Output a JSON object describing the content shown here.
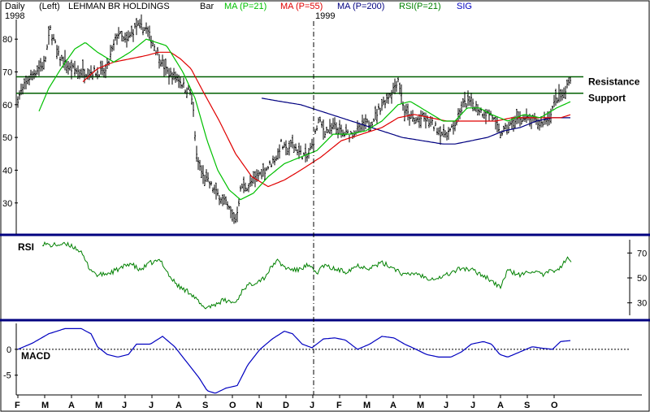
{
  "header": {
    "period": "Daily",
    "axis_side": "(Left)",
    "symbol": "LEHMAN BR HOLDINGS",
    "style": "Bar",
    "legend": [
      {
        "label": "MA (P=21)",
        "color": "#00c000"
      },
      {
        "label": "MA (P=55)",
        "color": "#e00000"
      },
      {
        "label": "MA (P=200)",
        "color": "#000080"
      },
      {
        "label": "RSI(P=21)",
        "color": "#008000"
      },
      {
        "label": "SIG",
        "color": "#0000c0"
      }
    ],
    "year_start": "1998",
    "year_mid": "1999"
  },
  "chart_data": [
    {
      "type": "bar",
      "panel": "price",
      "ylim": [
        22,
        86
      ],
      "y_ticks": [
        "80",
        "70",
        "60",
        "50",
        "40",
        "30"
      ],
      "x_months": [
        "F",
        "M",
        "A",
        "M",
        "J",
        "J",
        "A",
        "S",
        "O",
        "N",
        "D",
        "J",
        "F",
        "M",
        "A",
        "M",
        "J",
        "J",
        "A",
        "S",
        "O"
      ],
      "levels": [
        {
          "name": "Resistance",
          "value": 68.5
        },
        {
          "name": "Support",
          "value": 63.5
        }
      ],
      "close_anchors": [
        [
          0,
          53
        ],
        [
          7,
          56
        ],
        [
          20,
          61
        ],
        [
          35,
          68
        ],
        [
          55,
          73
        ],
        [
          62,
          83
        ],
        [
          72,
          75
        ],
        [
          85,
          71
        ],
        [
          100,
          70
        ],
        [
          112,
          70
        ],
        [
          130,
          70
        ],
        [
          145,
          82
        ],
        [
          155,
          79
        ],
        [
          168,
          84
        ],
        [
          180,
          83
        ],
        [
          192,
          77
        ],
        [
          205,
          70
        ],
        [
          220,
          68
        ],
        [
          228,
          65
        ],
        [
          234,
          64
        ],
        [
          238,
          58
        ],
        [
          242,
          44
        ],
        [
          250,
          38
        ],
        [
          258,
          36
        ],
        [
          266,
          33
        ],
        [
          275,
          31
        ],
        [
          282,
          28
        ],
        [
          290,
          25
        ],
        [
          297,
          35
        ],
        [
          306,
          35
        ],
        [
          316,
          38
        ],
        [
          330,
          41
        ],
        [
          340,
          44
        ],
        [
          346,
          48
        ],
        [
          352,
          46
        ],
        [
          360,
          48
        ],
        [
          370,
          45
        ],
        [
          378,
          44
        ],
        [
          385,
          48
        ],
        [
          392,
          55
        ],
        [
          400,
          52
        ],
        [
          412,
          53
        ],
        [
          422,
          51
        ],
        [
          432,
          51
        ],
        [
          445,
          53
        ],
        [
          458,
          55
        ],
        [
          470,
          60
        ],
        [
          482,
          64
        ],
        [
          490,
          68
        ],
        [
          498,
          58
        ],
        [
          510,
          55
        ],
        [
          520,
          56
        ],
        [
          532,
          54
        ],
        [
          545,
          51
        ],
        [
          555,
          52
        ],
        [
          562,
          55
        ],
        [
          570,
          60
        ],
        [
          580,
          61
        ],
        [
          592,
          58
        ],
        [
          605,
          57
        ],
        [
          615,
          51
        ],
        [
          625,
          53
        ],
        [
          640,
          56
        ],
        [
          655,
          55
        ],
        [
          665,
          54
        ],
        [
          675,
          56
        ],
        [
          685,
          62
        ],
        [
          695,
          63
        ],
        [
          700,
          68
        ],
        [
          703,
          67
        ]
      ],
      "ma21_anchors": [
        [
          48,
          58
        ],
        [
          60,
          65
        ],
        [
          75,
          71
        ],
        [
          92,
          77
        ],
        [
          105,
          79
        ],
        [
          120,
          76
        ],
        [
          140,
          73
        ],
        [
          160,
          76
        ],
        [
          180,
          80
        ],
        [
          205,
          78
        ],
        [
          225,
          70
        ],
        [
          240,
          62
        ],
        [
          255,
          49
        ],
        [
          268,
          40
        ],
        [
          282,
          34
        ],
        [
          296,
          31
        ],
        [
          312,
          33
        ],
        [
          330,
          38
        ],
        [
          350,
          42
        ],
        [
          370,
          44
        ],
        [
          390,
          46
        ],
        [
          410,
          51
        ],
        [
          430,
          51
        ],
        [
          450,
          52
        ],
        [
          470,
          55
        ],
        [
          490,
          60
        ],
        [
          505,
          61
        ],
        [
          525,
          58
        ],
        [
          545,
          55
        ],
        [
          560,
          55
        ],
        [
          575,
          59
        ],
        [
          590,
          59
        ],
        [
          605,
          57
        ],
        [
          625,
          55
        ],
        [
          645,
          57
        ],
        [
          665,
          56
        ],
        [
          685,
          59
        ],
        [
          703,
          61
        ]
      ],
      "ma55_anchors": [
        [
          102,
          67
        ],
        [
          120,
          71
        ],
        [
          140,
          73
        ],
        [
          160,
          74
        ],
        [
          180,
          75
        ],
        [
          195,
          76
        ],
        [
          210,
          76
        ],
        [
          222,
          74
        ],
        [
          235,
          71
        ],
        [
          250,
          64
        ],
        [
          270,
          55
        ],
        [
          290,
          45
        ],
        [
          310,
          38
        ],
        [
          330,
          35
        ],
        [
          350,
          37
        ],
        [
          370,
          40
        ],
        [
          395,
          44
        ],
        [
          420,
          49
        ],
        [
          445,
          51
        ],
        [
          470,
          53
        ],
        [
          490,
          56
        ],
        [
          510,
          57
        ],
        [
          530,
          56
        ],
        [
          550,
          55
        ],
        [
          570,
          55
        ],
        [
          590,
          55
        ],
        [
          610,
          55
        ],
        [
          630,
          56
        ],
        [
          650,
          56
        ],
        [
          670,
          56
        ],
        [
          690,
          56
        ],
        [
          703,
          57
        ]
      ],
      "ma200_anchors": [
        [
          322,
          62
        ],
        [
          345,
          61
        ],
        [
          370,
          60
        ],
        [
          395,
          58
        ],
        [
          420,
          56
        ],
        [
          445,
          54
        ],
        [
          470,
          52
        ],
        [
          495,
          50
        ],
        [
          520,
          49
        ],
        [
          545,
          48
        ],
        [
          560,
          48
        ],
        [
          580,
          49
        ],
        [
          600,
          50
        ],
        [
          620,
          52
        ],
        [
          640,
          53
        ],
        [
          660,
          55
        ],
        [
          680,
          56
        ],
        [
          703,
          56
        ]
      ]
    },
    {
      "type": "line",
      "panel": "rsi",
      "title": "RSI",
      "ylim": [
        20,
        80
      ],
      "y_ticks": [
        "70",
        "50",
        "30"
      ],
      "anchors": [
        [
          52,
          78
        ],
        [
          62,
          76
        ],
        [
          75,
          77
        ],
        [
          88,
          76
        ],
        [
          98,
          72
        ],
        [
          110,
          58
        ],
        [
          120,
          52
        ],
        [
          135,
          54
        ],
        [
          150,
          58
        ],
        [
          160,
          62
        ],
        [
          172,
          56
        ],
        [
          185,
          62
        ],
        [
          198,
          64
        ],
        [
          210,
          50
        ],
        [
          222,
          42
        ],
        [
          235,
          38
        ],
        [
          250,
          26
        ],
        [
          262,
          28
        ],
        [
          275,
          32
        ],
        [
          290,
          30
        ],
        [
          300,
          42
        ],
        [
          312,
          46
        ],
        [
          325,
          50
        ],
        [
          340,
          64
        ],
        [
          352,
          58
        ],
        [
          365,
          56
        ],
        [
          378,
          60
        ],
        [
          390,
          54
        ],
        [
          398,
          60
        ],
        [
          412,
          57
        ],
        [
          425,
          55
        ],
        [
          440,
          60
        ],
        [
          455,
          58
        ],
        [
          470,
          62
        ],
        [
          485,
          58
        ],
        [
          498,
          52
        ],
        [
          512,
          54
        ],
        [
          525,
          50
        ],
        [
          540,
          50
        ],
        [
          555,
          54
        ],
        [
          568,
          58
        ],
        [
          582,
          56
        ],
        [
          595,
          52
        ],
        [
          605,
          48
        ],
        [
          615,
          42
        ],
        [
          625,
          56
        ],
        [
          640,
          52
        ],
        [
          655,
          56
        ],
        [
          668,
          52
        ],
        [
          680,
          56
        ],
        [
          690,
          58
        ],
        [
          698,
          66
        ],
        [
          703,
          62
        ]
      ]
    },
    {
      "type": "line",
      "panel": "macd",
      "title": "MACD",
      "ylim": [
        -8.5,
        5
      ],
      "y_ticks": [
        "0",
        "-5"
      ],
      "anchors": [
        [
          22,
          0
        ],
        [
          40,
          1.2
        ],
        [
          60,
          3
        ],
        [
          80,
          4
        ],
        [
          100,
          4
        ],
        [
          112,
          3
        ],
        [
          120,
          0.5
        ],
        [
          132,
          -1
        ],
        [
          145,
          -1.5
        ],
        [
          158,
          -1
        ],
        [
          168,
          1
        ],
        [
          185,
          1
        ],
        [
          200,
          2.5
        ],
        [
          215,
          0.5
        ],
        [
          230,
          -2.5
        ],
        [
          245,
          -5.5
        ],
        [
          255,
          -8
        ],
        [
          265,
          -8.5
        ],
        [
          278,
          -7.5
        ],
        [
          292,
          -7
        ],
        [
          305,
          -3
        ],
        [
          320,
          0
        ],
        [
          335,
          2
        ],
        [
          350,
          3.5
        ],
        [
          360,
          3
        ],
        [
          372,
          1
        ],
        [
          384,
          0.3
        ],
        [
          398,
          2
        ],
        [
          412,
          2.2
        ],
        [
          425,
          1.8
        ],
        [
          440,
          0
        ],
        [
          455,
          1
        ],
        [
          470,
          2.5
        ],
        [
          485,
          2.2
        ],
        [
          498,
          1
        ],
        [
          512,
          0
        ],
        [
          525,
          -1
        ],
        [
          540,
          -1.5
        ],
        [
          555,
          -1.5
        ],
        [
          568,
          -0.5
        ],
        [
          580,
          1
        ],
        [
          595,
          1.5
        ],
        [
          605,
          1
        ],
        [
          615,
          -1
        ],
        [
          625,
          -1.5
        ],
        [
          640,
          -0.5
        ],
        [
          655,
          0.5
        ],
        [
          668,
          0.2
        ],
        [
          680,
          0
        ],
        [
          690,
          1.5
        ],
        [
          703,
          1.7
        ]
      ]
    }
  ]
}
